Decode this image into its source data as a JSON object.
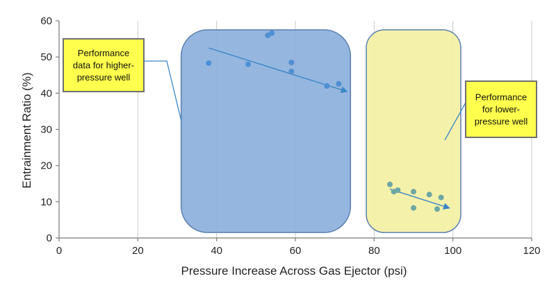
{
  "chart_data": {
    "type": "scatter",
    "title": "",
    "xlabel": "Pressure Increase Across Gas Ejector (psi)",
    "ylabel": "Entrainment Ratio (%)",
    "xlim": [
      0,
      120
    ],
    "ylim": [
      0,
      60
    ],
    "x_ticks": [
      "0",
      "20",
      "40",
      "60",
      "80",
      "100",
      "120"
    ],
    "y_ticks": [
      "0",
      "10",
      "20",
      "30",
      "40",
      "50",
      "60"
    ],
    "grid": "vertical",
    "legend": "none",
    "series": [
      {
        "color": "#4f8fd3",
        "points": [
          [
            38,
            48.3
          ],
          [
            48,
            48.0
          ],
          [
            53,
            56.0
          ],
          [
            54,
            56.6
          ],
          [
            59,
            48.5
          ],
          [
            59,
            46.0
          ],
          [
            68,
            42.0
          ],
          [
            71,
            42.6
          ]
        ],
        "trend": [
          [
            38,
            52.5
          ],
          [
            73,
            40.5
          ]
        ]
      },
      {
        "color": "#6ea6a3",
        "points": [
          [
            84,
            14.8
          ],
          [
            85,
            12.8
          ],
          [
            86,
            13.2
          ],
          [
            90,
            12.8
          ],
          [
            90,
            8.3
          ],
          [
            94,
            12.0
          ],
          [
            96,
            8.0
          ],
          [
            97,
            11.2
          ]
        ],
        "trend": [
          [
            84,
            13.5
          ],
          [
            99,
            8.3
          ]
        ]
      }
    ],
    "annotations": [
      {
        "lines": [
          "Performance",
          "data for higher-",
          "pressure well"
        ],
        "region": {
          "x": [
            31,
            74
          ],
          "y": [
            1.5,
            57.5
          ]
        },
        "fill": "#8fb2dd",
        "stroke": "#5a7fb0"
      },
      {
        "lines": [
          "Performance",
          "for lower-",
          "pressure well"
        ],
        "region": {
          "x": [
            78,
            102
          ],
          "y": [
            1.5,
            57.5
          ]
        },
        "fill": "#f3f0a6",
        "stroke": "#5a7fb0"
      }
    ]
  },
  "colors": {
    "axis": "#7a7a7a",
    "grid": "#c8c8c8",
    "trend": "#3d86c6",
    "callout_fill": "#ffff4d",
    "callout_border": "#6f6f6f"
  }
}
